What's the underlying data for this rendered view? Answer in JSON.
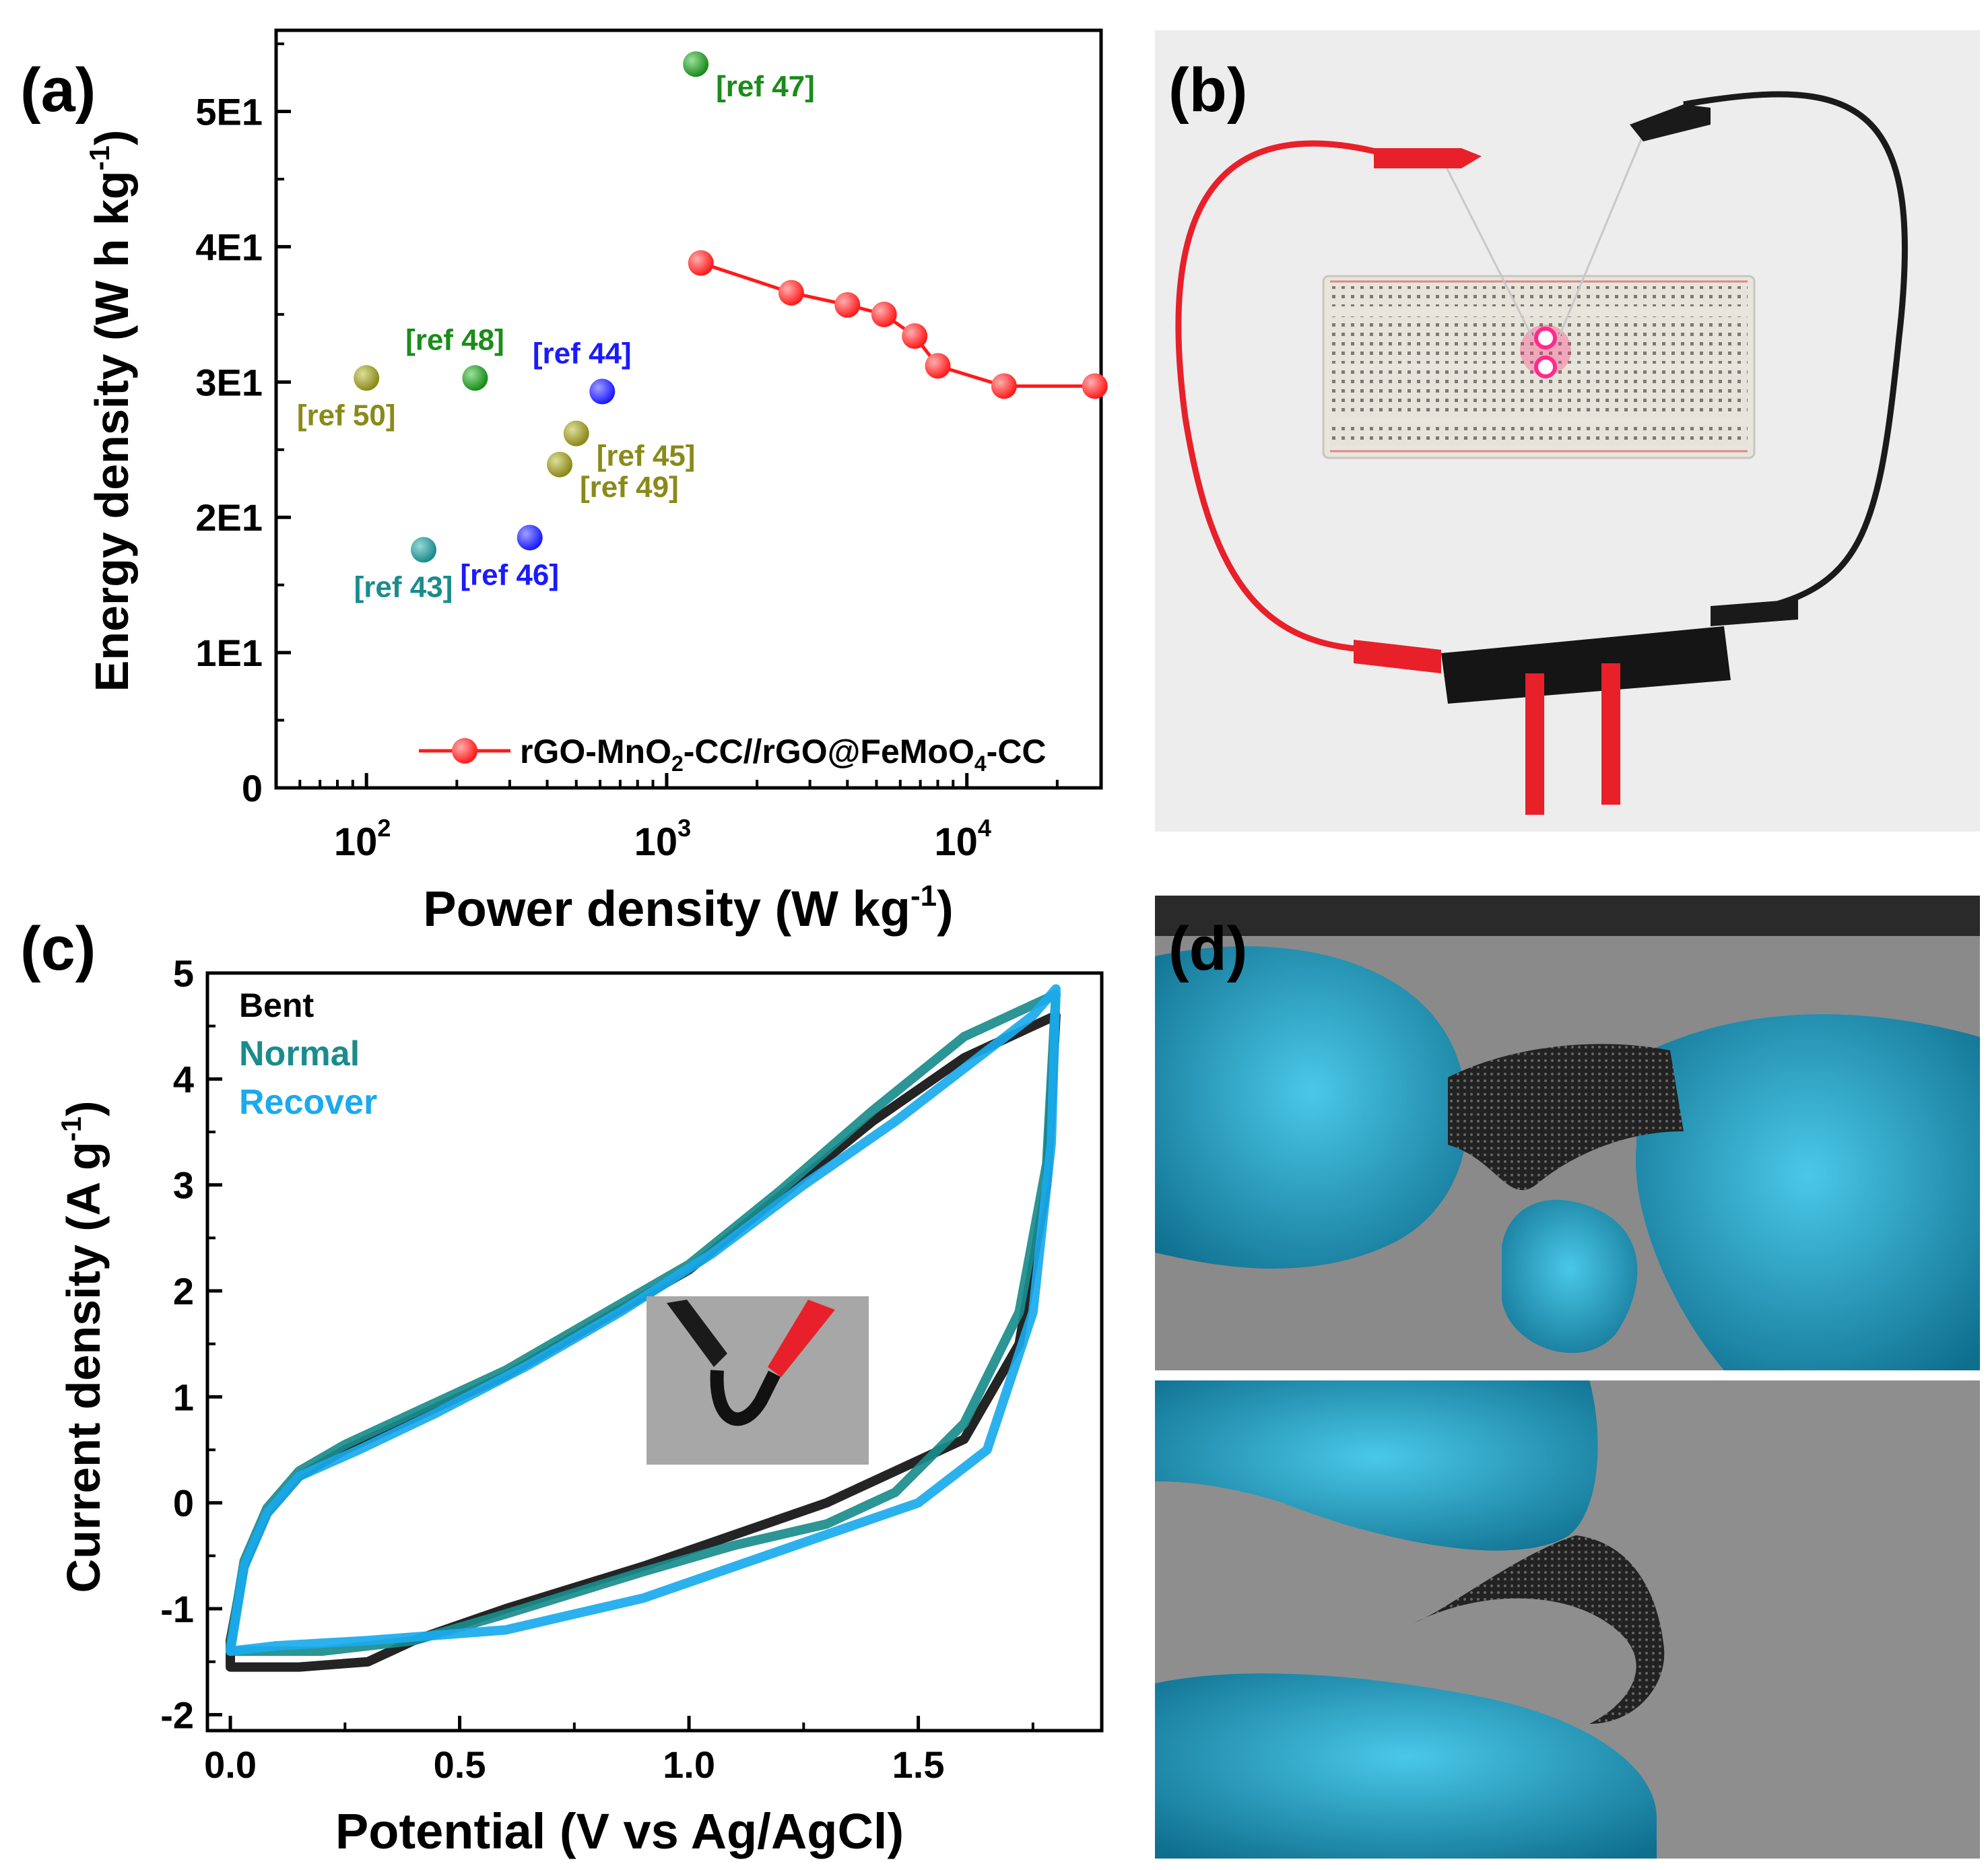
{
  "panels": {
    "a": "(a)",
    "b": "(b)",
    "c": "(c)",
    "d": "(d)"
  },
  "chart_data": [
    {
      "id": "a",
      "type": "scatter",
      "xscale": "log",
      "xlabel": "Power density (W kg",
      "xlabel_sup": "-1",
      "xlabel_end": ")",
      "ylabel": "Energy density (W h kg",
      "ylabel_sup": "-1",
      "ylabel_end": ")",
      "xlim": [
        50,
        28000
      ],
      "ylim": [
        0,
        56
      ],
      "xticks": [
        {
          "value": 100,
          "base": "10",
          "exp": "2"
        },
        {
          "value": 1000,
          "base": "10",
          "exp": "3"
        },
        {
          "value": 10000,
          "base": "10",
          "exp": "4"
        }
      ],
      "yticks": [
        {
          "value": 0,
          "label": "0"
        },
        {
          "value": 10,
          "label": "1E1"
        },
        {
          "value": 20,
          "label": "2E1"
        },
        {
          "value": 30,
          "label": "3E1"
        },
        {
          "value": 40,
          "label": "4E1"
        },
        {
          "value": 50,
          "label": "5E1"
        }
      ],
      "points": [
        {
          "label": "[ref 47]",
          "x": 1250,
          "y": 53.5,
          "color": "#1a8c1a",
          "label_pos": "right-below"
        },
        {
          "label": "[ref 48]",
          "x": 230,
          "y": 30.3,
          "color": "#1a8c1a",
          "label_pos": "above"
        },
        {
          "label": "[ref 50]",
          "x": 100,
          "y": 30.3,
          "color": "#8a8a1a",
          "label_pos": "below"
        },
        {
          "label": "[ref 44]",
          "x": 610,
          "y": 29.3,
          "color": "#1a1aff",
          "label_pos": "above"
        },
        {
          "label": "[ref 45]",
          "x": 500,
          "y": 26.2,
          "color": "#8a8a1a",
          "label_pos": "right-below"
        },
        {
          "label": "[ref 49]",
          "x": 440,
          "y": 23.9,
          "color": "#8a8a1a",
          "label_pos": "right-below"
        },
        {
          "label": "[ref 46]",
          "x": 350,
          "y": 18.5,
          "color": "#1a1aff",
          "label_pos": "below"
        },
        {
          "label": "[ref 43]",
          "x": 155,
          "y": 17.6,
          "color": "#1a8c8c",
          "label_pos": "below"
        }
      ],
      "series": [
        {
          "name": "rGO-MnO",
          "name_sub": "2",
          "name_mid": "-CC//rGO@FeMoO",
          "name_sub2": "4",
          "name_end": "-CC",
          "color": "#ff1a1a",
          "x": [
            1300,
            2600,
            4000,
            5300,
            6700,
            8000,
            13300,
            26700
          ],
          "y": [
            38.8,
            36.6,
            35.7,
            35.0,
            33.4,
            31.2,
            29.7,
            29.7
          ]
        }
      ]
    },
    {
      "id": "c",
      "type": "line",
      "xlabel": "Potential (V vs Ag/AgCl)",
      "ylabel": "Current density (A g",
      "ylabel_sup": "-1",
      "ylabel_end": ")",
      "xlim": [
        -0.05,
        1.9
      ],
      "ylim": [
        -2.15,
        5.0
      ],
      "xticks": [
        {
          "value": 0.0,
          "label": "0.0"
        },
        {
          "value": 0.5,
          "label": "0.5"
        },
        {
          "value": 1.0,
          "label": "1.0"
        },
        {
          "value": 1.5,
          "label": "1.5"
        }
      ],
      "yticks": [
        {
          "value": -2,
          "label": "-2"
        },
        {
          "value": -1,
          "label": "-1"
        },
        {
          "value": 0,
          "label": "0"
        },
        {
          "value": 1,
          "label": "1"
        },
        {
          "value": 2,
          "label": "2"
        },
        {
          "value": 3,
          "label": "3"
        },
        {
          "value": 4,
          "label": "4"
        },
        {
          "value": 5,
          "label": "5"
        }
      ],
      "series": [
        {
          "name": "Bent",
          "color": "#111111",
          "points": [
            [
              0,
              -1.3
            ],
            [
              0.03,
              -0.6
            ],
            [
              0.08,
              -0.1
            ],
            [
              0.15,
              0.25
            ],
            [
              0.25,
              0.5
            ],
            [
              0.4,
              0.8
            ],
            [
              0.6,
              1.2
            ],
            [
              0.8,
              1.7
            ],
            [
              1.0,
              2.2
            ],
            [
              1.2,
              2.9
            ],
            [
              1.4,
              3.6
            ],
            [
              1.6,
              4.2
            ],
            [
              1.75,
              4.5
            ],
            [
              1.8,
              4.6
            ],
            [
              1.78,
              3.0
            ],
            [
              1.72,
              1.5
            ],
            [
              1.6,
              0.6
            ],
            [
              1.4,
              0.2
            ],
            [
              1.3,
              0.0
            ],
            [
              1.1,
              -0.3
            ],
            [
              0.9,
              -0.6
            ],
            [
              0.6,
              -1.0
            ],
            [
              0.4,
              -1.3
            ],
            [
              0.3,
              -1.5
            ],
            [
              0.15,
              -1.55
            ],
            [
              0.0,
              -1.55
            ],
            [
              0,
              -1.3
            ]
          ]
        },
        {
          "name": "Normal",
          "color": "#1a8c8c",
          "points": [
            [
              0,
              -1.35
            ],
            [
              0.03,
              -0.55
            ],
            [
              0.08,
              -0.05
            ],
            [
              0.15,
              0.3
            ],
            [
              0.25,
              0.55
            ],
            [
              0.4,
              0.85
            ],
            [
              0.6,
              1.25
            ],
            [
              0.8,
              1.75
            ],
            [
              1.0,
              2.25
            ],
            [
              1.2,
              2.95
            ],
            [
              1.4,
              3.7
            ],
            [
              1.6,
              4.4
            ],
            [
              1.75,
              4.7
            ],
            [
              1.8,
              4.8
            ],
            [
              1.78,
              3.2
            ],
            [
              1.72,
              1.8
            ],
            [
              1.6,
              0.75
            ],
            [
              1.45,
              0.1
            ],
            [
              1.3,
              -0.2
            ],
            [
              1.1,
              -0.4
            ],
            [
              0.9,
              -0.65
            ],
            [
              0.6,
              -1.05
            ],
            [
              0.4,
              -1.3
            ],
            [
              0.2,
              -1.4
            ],
            [
              0.0,
              -1.4
            ],
            [
              0,
              -1.35
            ]
          ]
        },
        {
          "name": "Recover",
          "color": "#1aaaee",
          "points": [
            [
              0,
              -1.4
            ],
            [
              0.03,
              -0.6
            ],
            [
              0.08,
              -0.1
            ],
            [
              0.15,
              0.25
            ],
            [
              0.28,
              0.5
            ],
            [
              0.45,
              0.85
            ],
            [
              0.65,
              1.3
            ],
            [
              0.85,
              1.8
            ],
            [
              1.05,
              2.35
            ],
            [
              1.25,
              3.0
            ],
            [
              1.45,
              3.6
            ],
            [
              1.6,
              4.1
            ],
            [
              1.75,
              4.6
            ],
            [
              1.8,
              4.85
            ],
            [
              1.79,
              3.4
            ],
            [
              1.75,
              1.8
            ],
            [
              1.65,
              0.5
            ],
            [
              1.5,
              0.0
            ],
            [
              1.3,
              -0.3
            ],
            [
              1.1,
              -0.6
            ],
            [
              0.9,
              -0.9
            ],
            [
              0.6,
              -1.2
            ],
            [
              0.3,
              -1.3
            ],
            [
              0.1,
              -1.35
            ],
            [
              0.0,
              -1.4
            ]
          ]
        }
      ]
    }
  ]
}
